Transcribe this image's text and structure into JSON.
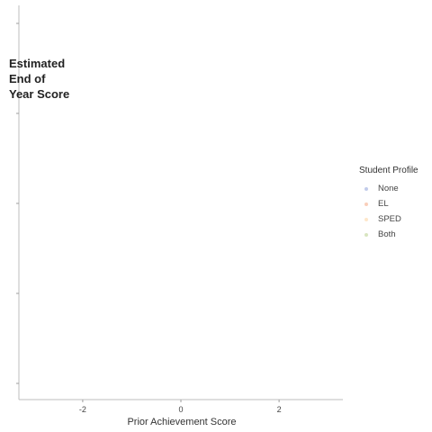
{
  "chart_data": {
    "type": "scatter",
    "xlabel": "Prior Achievement Score",
    "ylabel_lines": [
      "Estimated",
      "End of",
      "Year Score"
    ],
    "xlim": [
      -3.3,
      3.3
    ],
    "x_ticks": [
      -2,
      0,
      2
    ],
    "x_tick_labels": [
      "-2",
      "0",
      "2"
    ],
    "y_tick_count": 5,
    "y_tick_labels": [
      "",
      "",
      "",
      "",
      ""
    ],
    "grid": false,
    "legend_position": "right",
    "legend": {
      "title": "Student Profile",
      "entries": [
        {
          "label": "None",
          "color": "#8fa3d9"
        },
        {
          "label": "EL",
          "color": "#f4a582"
        },
        {
          "label": "SPED",
          "color": "#fdd49e"
        },
        {
          "label": "Both",
          "color": "#b8cf8c"
        }
      ]
    },
    "series": [
      {
        "name": "None",
        "points": []
      },
      {
        "name": "EL",
        "points": []
      },
      {
        "name": "SPED",
        "points": []
      },
      {
        "name": "Both",
        "points": []
      }
    ]
  }
}
